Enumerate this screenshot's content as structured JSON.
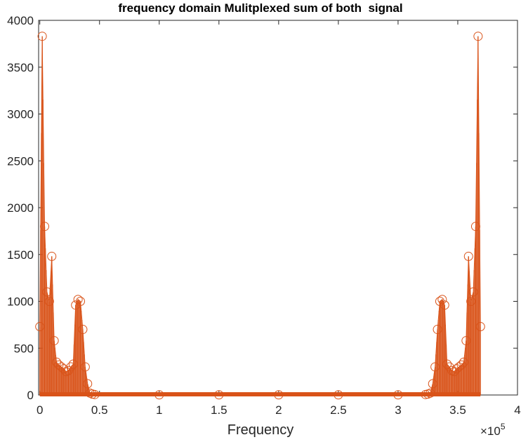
{
  "chart_data": {
    "type": "scatter",
    "title": "frequency domain Mulitplexed sum of both  signal",
    "xlabel": "Frequency",
    "ylabel": "",
    "x_exponent_base": "×10",
    "x_exponent_power": "5",
    "xlim": [
      -0.01,
      4
    ],
    "ylim": [
      0,
      4000
    ],
    "x_unit_scale": 100000,
    "xticks": [
      0,
      0.5,
      1,
      1.5,
      2,
      2.5,
      3,
      3.5,
      4
    ],
    "xtick_labels": [
      "0",
      "0.5",
      "1",
      "1.5",
      "2",
      "2.5",
      "3",
      "3.5",
      "4"
    ],
    "yticks": [
      0,
      500,
      1000,
      1500,
      2000,
      2500,
      3000,
      3500,
      4000
    ],
    "ytick_labels": [
      "0",
      "500",
      "1000",
      "1500",
      "2000",
      "2500",
      "3000",
      "3500",
      "4000"
    ],
    "grid": false,
    "marker": "open-circle",
    "series": [
      {
        "color": "#d95319",
        "x": [
          0,
          2000,
          4000,
          6000,
          8000,
          10000,
          12000,
          14000,
          16000,
          18000,
          20000,
          22000,
          24000,
          26000,
          28000,
          30000,
          32000,
          34000,
          36000,
          38000,
          40000,
          42000,
          44000,
          46000,
          100000,
          150000,
          200000,
          250000,
          300000,
          323000,
          325000,
          327000,
          329000,
          331000,
          333000,
          335000,
          337000,
          339000,
          341000,
          343000,
          345000,
          347000,
          349000,
          351000,
          353000,
          355000,
          357000,
          359000,
          361000,
          363000,
          365000,
          367000,
          369000
        ],
        "y": [
          730,
          3830,
          1800,
          1100,
          1000,
          1480,
          580,
          350,
          320,
          300,
          280,
          250,
          260,
          300,
          330,
          960,
          1020,
          1000,
          700,
          300,
          120,
          20,
          10,
          5,
          2,
          2,
          2,
          2,
          2,
          5,
          10,
          20,
          120,
          300,
          700,
          1000,
          1020,
          960,
          330,
          300,
          260,
          250,
          280,
          300,
          320,
          350,
          580,
          1480,
          1000,
          1100,
          1800,
          3830,
          730
        ]
      }
    ]
  }
}
